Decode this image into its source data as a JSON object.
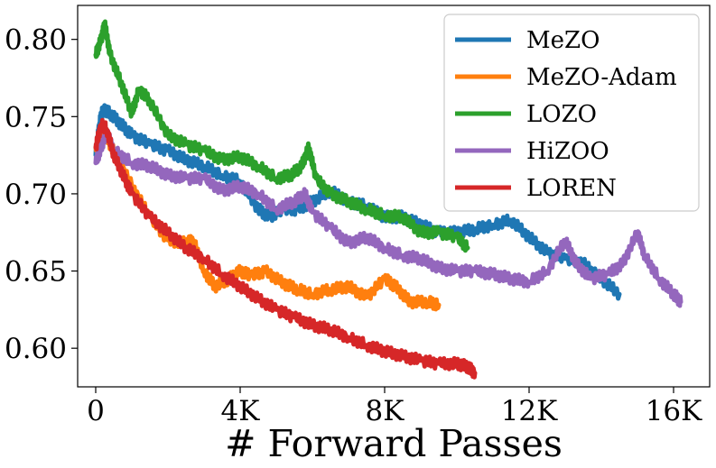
{
  "chart_data": {
    "type": "line",
    "title": "",
    "xlabel": "# Forward Passes",
    "ylabel": "",
    "xlim": [
      -500,
      17000
    ],
    "ylim": [
      0.575,
      0.822
    ],
    "grid": false,
    "legend_position": "top-right",
    "x_ticks": [
      0,
      4000,
      8000,
      12000,
      16000
    ],
    "x_tick_labels": [
      "0",
      "4K",
      "8K",
      "12K",
      "16K"
    ],
    "y_ticks": [
      0.6,
      0.65,
      0.7,
      0.75,
      0.8
    ],
    "y_tick_labels": [
      "0.60",
      "0.65",
      "0.70",
      "0.75",
      "0.80"
    ],
    "series": [
      {
        "name": "MeZO",
        "color": "#1f77b4",
        "points": [
          [
            0,
            0.725
          ],
          [
            100,
            0.745
          ],
          [
            200,
            0.755
          ],
          [
            400,
            0.752
          ],
          [
            700,
            0.745
          ],
          [
            1000,
            0.738
          ],
          [
            1500,
            0.732
          ],
          [
            2000,
            0.728
          ],
          [
            2500,
            0.722
          ],
          [
            3000,
            0.718
          ],
          [
            3500,
            0.712
          ],
          [
            4000,
            0.708
          ],
          [
            4500,
            0.69
          ],
          [
            4800,
            0.685
          ],
          [
            5200,
            0.69
          ],
          [
            5600,
            0.69
          ],
          [
            6000,
            0.695
          ],
          [
            6500,
            0.702
          ],
          [
            7000,
            0.695
          ],
          [
            7500,
            0.692
          ],
          [
            8000,
            0.685
          ],
          [
            8500,
            0.685
          ],
          [
            9000,
            0.68
          ],
          [
            9500,
            0.675
          ],
          [
            10000,
            0.675
          ],
          [
            10500,
            0.677
          ],
          [
            11000,
            0.68
          ],
          [
            11500,
            0.683
          ],
          [
            12000,
            0.672
          ],
          [
            12500,
            0.662
          ],
          [
            13000,
            0.658
          ],
          [
            13500,
            0.655
          ],
          [
            14000,
            0.645
          ],
          [
            14500,
            0.635
          ]
        ]
      },
      {
        "name": "MeZO-Adam",
        "color": "#ff7f0e",
        "points": [
          [
            0,
            0.73
          ],
          [
            200,
            0.74
          ],
          [
            500,
            0.728
          ],
          [
            1000,
            0.705
          ],
          [
            1500,
            0.685
          ],
          [
            2000,
            0.67
          ],
          [
            2500,
            0.668
          ],
          [
            2700,
            0.67
          ],
          [
            3000,
            0.65
          ],
          [
            3300,
            0.64
          ],
          [
            3700,
            0.645
          ],
          [
            4000,
            0.65
          ],
          [
            4300,
            0.647
          ],
          [
            4700,
            0.65
          ],
          [
            5200,
            0.642
          ],
          [
            5600,
            0.638
          ],
          [
            6000,
            0.635
          ],
          [
            6500,
            0.638
          ],
          [
            7000,
            0.64
          ],
          [
            7500,
            0.633
          ],
          [
            8000,
            0.645
          ],
          [
            8300,
            0.64
          ],
          [
            8700,
            0.63
          ],
          [
            9200,
            0.63
          ],
          [
            9500,
            0.628
          ]
        ]
      },
      {
        "name": "LOZO",
        "color": "#2ca02c",
        "points": [
          [
            0,
            0.79
          ],
          [
            150,
            0.8
          ],
          [
            250,
            0.81
          ],
          [
            400,
            0.79
          ],
          [
            700,
            0.772
          ],
          [
            1000,
            0.752
          ],
          [
            1200,
            0.768
          ],
          [
            1500,
            0.76
          ],
          [
            2000,
            0.738
          ],
          [
            2500,
            0.732
          ],
          [
            3000,
            0.728
          ],
          [
            3500,
            0.722
          ],
          [
            4000,
            0.724
          ],
          [
            4500,
            0.718
          ],
          [
            5000,
            0.71
          ],
          [
            5400,
            0.712
          ],
          [
            5700,
            0.718
          ],
          [
            5900,
            0.73
          ],
          [
            6100,
            0.71
          ],
          [
            6500,
            0.7
          ],
          [
            7000,
            0.695
          ],
          [
            7500,
            0.69
          ],
          [
            8000,
            0.686
          ],
          [
            8500,
            0.685
          ],
          [
            9000,
            0.675
          ],
          [
            9500,
            0.675
          ],
          [
            10000,
            0.672
          ],
          [
            10300,
            0.665
          ]
        ]
      },
      {
        "name": "HiZOO",
        "color": "#9467bd",
        "points": [
          [
            0,
            0.72
          ],
          [
            150,
            0.73
          ],
          [
            300,
            0.74
          ],
          [
            500,
            0.728
          ],
          [
            1000,
            0.72
          ],
          [
            1500,
            0.718
          ],
          [
            2000,
            0.712
          ],
          [
            2500,
            0.71
          ],
          [
            3000,
            0.71
          ],
          [
            3500,
            0.702
          ],
          [
            4000,
            0.705
          ],
          [
            4500,
            0.7
          ],
          [
            5000,
            0.69
          ],
          [
            5500,
            0.695
          ],
          [
            5800,
            0.7
          ],
          [
            6000,
            0.688
          ],
          [
            6500,
            0.678
          ],
          [
            7000,
            0.668
          ],
          [
            7500,
            0.672
          ],
          [
            8000,
            0.665
          ],
          [
            8500,
            0.66
          ],
          [
            9000,
            0.658
          ],
          [
            9500,
            0.652
          ],
          [
            10000,
            0.65
          ],
          [
            10500,
            0.65
          ],
          [
            11000,
            0.648
          ],
          [
            11500,
            0.645
          ],
          [
            12000,
            0.643
          ],
          [
            12500,
            0.65
          ],
          [
            13000,
            0.67
          ],
          [
            13300,
            0.655
          ],
          [
            13700,
            0.645
          ],
          [
            14200,
            0.648
          ],
          [
            14600,
            0.655
          ],
          [
            15000,
            0.675
          ],
          [
            15200,
            0.66
          ],
          [
            15600,
            0.645
          ],
          [
            16000,
            0.635
          ],
          [
            16200,
            0.63
          ]
        ]
      },
      {
        "name": "LOREN",
        "color": "#d62728",
        "points": [
          [
            0,
            0.73
          ],
          [
            150,
            0.745
          ],
          [
            300,
            0.742
          ],
          [
            500,
            0.725
          ],
          [
            800,
            0.71
          ],
          [
            1000,
            0.7
          ],
          [
            1500,
            0.685
          ],
          [
            2000,
            0.675
          ],
          [
            2500,
            0.665
          ],
          [
            3000,
            0.658
          ],
          [
            3500,
            0.648
          ],
          [
            4000,
            0.64
          ],
          [
            4500,
            0.632
          ],
          [
            5000,
            0.625
          ],
          [
            5500,
            0.62
          ],
          [
            6000,
            0.615
          ],
          [
            6500,
            0.612
          ],
          [
            7000,
            0.607
          ],
          [
            7500,
            0.602
          ],
          [
            8000,
            0.598
          ],
          [
            8500,
            0.595
          ],
          [
            9000,
            0.592
          ],
          [
            9500,
            0.59
          ],
          [
            10000,
            0.59
          ],
          [
            10300,
            0.588
          ],
          [
            10500,
            0.584
          ]
        ]
      }
    ]
  }
}
